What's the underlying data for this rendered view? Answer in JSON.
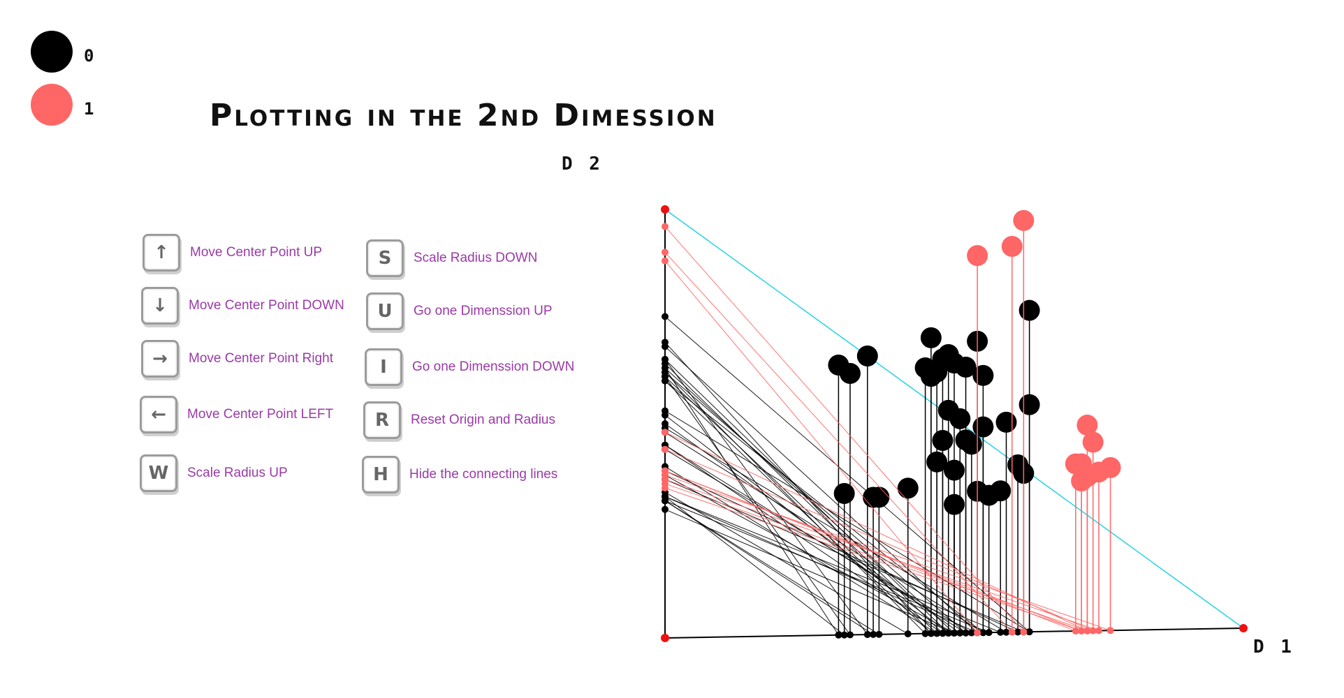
{
  "title": "Plotting in the 2nd Dimession",
  "legend": [
    {
      "label": "0",
      "color": "#000000"
    },
    {
      "label": "1",
      "color": "#ff6666"
    }
  ],
  "axes": {
    "x_label": "D 1",
    "y_label": "D 2"
  },
  "controls": {
    "left": [
      {
        "key": "↑",
        "label": "Move Center Point UP",
        "icon": "arrow-up-icon"
      },
      {
        "key": "↓",
        "label": "Move Center Point DOWN",
        "icon": "arrow-down-icon"
      },
      {
        "key": "→",
        "label": "Move Center Point Right",
        "icon": "arrow-right-icon"
      },
      {
        "key": "←",
        "label": "Move Center Point LEFT",
        "icon": "arrow-left-icon"
      },
      {
        "key": "W",
        "label": "Scale Radius UP",
        "icon": "w-key-icon"
      }
    ],
    "right": [
      {
        "key": "S",
        "label": "Scale Radius DOWN",
        "icon": "s-key-icon"
      },
      {
        "key": "U",
        "label": "Go one Dimenssion UP",
        "icon": "u-key-icon"
      },
      {
        "key": "I",
        "label": "Go one Dimenssion DOWN",
        "icon": "i-key-icon"
      },
      {
        "key": "R",
        "label": "Reset Origin and Radius",
        "icon": "r-key-icon"
      },
      {
        "key": "H",
        "label": "Hide the connecting lines",
        "icon": "h-key-icon"
      }
    ]
  },
  "colors": {
    "class0": "#000000",
    "class1": "#ff6666",
    "radius_line": "#22d3e6",
    "axis_point": "#ee1111"
  },
  "chart_data": {
    "type": "scatter",
    "xlabel": "D 1",
    "ylabel": "D 2",
    "xlim": [
      0,
      1
    ],
    "ylim": [
      0,
      1
    ],
    "series": [
      {
        "name": "0",
        "points": [
          [
            0.3,
            0.63
          ],
          [
            0.32,
            0.61
          ],
          [
            0.35,
            0.65
          ],
          [
            0.31,
            0.33
          ],
          [
            0.37,
            0.32
          ],
          [
            0.36,
            0.32
          ],
          [
            0.42,
            0.34
          ],
          [
            0.45,
            0.62
          ],
          [
            0.47,
            0.61
          ],
          [
            0.46,
            0.6
          ],
          [
            0.48,
            0.64
          ],
          [
            0.5,
            0.63
          ],
          [
            0.52,
            0.62
          ],
          [
            0.54,
            0.68
          ],
          [
            0.55,
            0.6
          ],
          [
            0.49,
            0.52
          ],
          [
            0.51,
            0.5
          ],
          [
            0.48,
            0.45
          ],
          [
            0.47,
            0.4
          ],
          [
            0.52,
            0.45
          ],
          [
            0.53,
            0.44
          ],
          [
            0.5,
            0.38
          ],
          [
            0.55,
            0.48
          ],
          [
            0.56,
            0.32
          ],
          [
            0.58,
            0.33
          ],
          [
            0.54,
            0.33
          ],
          [
            0.59,
            0.49
          ],
          [
            0.61,
            0.39
          ],
          [
            0.62,
            0.37
          ],
          [
            0.63,
            0.53
          ],
          [
            0.63,
            0.75
          ],
          [
            0.46,
            0.69
          ],
          [
            0.49,
            0.65
          ],
          [
            0.5,
            0.3
          ]
        ]
      },
      {
        "name": "1",
        "points": [
          [
            0.54,
            0.88
          ],
          [
            0.6,
            0.9
          ],
          [
            0.62,
            0.96
          ],
          [
            0.71,
            0.39
          ],
          [
            0.73,
            0.36
          ],
          [
            0.72,
            0.39
          ],
          [
            0.74,
            0.44
          ],
          [
            0.75,
            0.37
          ],
          [
            0.72,
            0.35
          ],
          [
            0.77,
            0.38
          ],
          [
            0.73,
            0.48
          ]
        ]
      }
    ]
  }
}
